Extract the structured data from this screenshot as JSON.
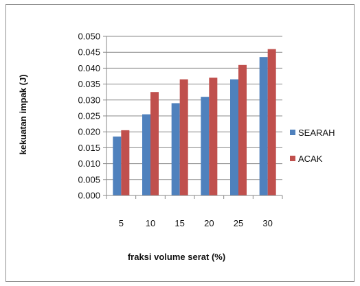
{
  "chart_data": {
    "type": "bar",
    "categories": [
      "5",
      "10",
      "15",
      "20",
      "25",
      "30"
    ],
    "series": [
      {
        "name": "SEARAH",
        "color": "#4f81bd",
        "values": [
          0.0185,
          0.0255,
          0.029,
          0.031,
          0.0365,
          0.0435
        ]
      },
      {
        "name": "ACAK",
        "color": "#c0504d",
        "values": [
          0.0205,
          0.0325,
          0.0365,
          0.037,
          0.041,
          0.046
        ]
      }
    ],
    "ylim": [
      0,
      0.05
    ],
    "yticks": [
      "0.000",
      "0.005",
      "0.010",
      "0.015",
      "0.020",
      "0.025",
      "0.030",
      "0.035",
      "0.040",
      "0.045",
      "0.050"
    ],
    "xlabel": "fraksi volume serat (%)",
    "ylabel": "kekuatan impak (J)",
    "grid": true,
    "legend": "right"
  }
}
